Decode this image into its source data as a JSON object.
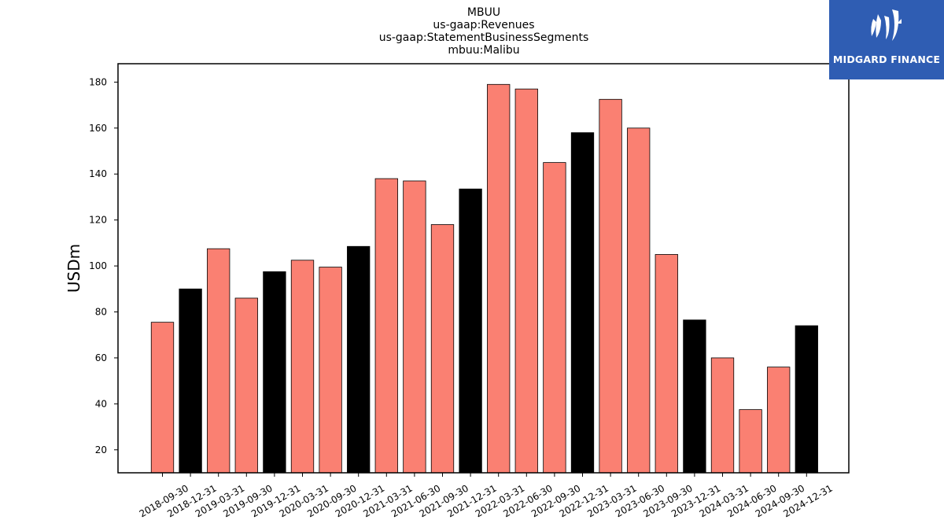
{
  "brand": {
    "name": "MIDGARD FINANCE",
    "color": "#2f5db3",
    "icon": "midgard-logo-icon"
  },
  "chart_data": {
    "type": "bar",
    "title_lines": [
      "MBUU",
      "us-gaap:Revenues",
      "us-gaap:StatementBusinessSegments",
      "mbuu:Malibu"
    ],
    "xlabel": "",
    "ylabel": "USDm",
    "ylim": [
      10,
      188
    ],
    "yticks": [
      20,
      40,
      60,
      80,
      100,
      120,
      140,
      160,
      180
    ],
    "grid": false,
    "colors": {
      "quarter": "#fa8072",
      "year_end": "#000000",
      "edge": "#000000"
    },
    "categories": [
      "2018-09-30",
      "2018-12-31",
      "2019-03-31",
      "2019-09-30",
      "2019-12-31",
      "2020-03-31",
      "2020-09-30",
      "2020-12-31",
      "2021-03-31",
      "2021-06-30",
      "2021-09-30",
      "2021-12-31",
      "2022-03-31",
      "2022-06-30",
      "2022-09-30",
      "2022-12-31",
      "2023-03-31",
      "2023-06-30",
      "2023-09-30",
      "2023-12-31",
      "2024-03-31",
      "2024-06-30",
      "2024-09-30",
      "2024-12-31"
    ],
    "values": [
      75.5,
      90.0,
      107.5,
      86.0,
      97.5,
      102.5,
      99.5,
      108.5,
      138.0,
      137.0,
      118.0,
      133.5,
      179.0,
      177.0,
      145.0,
      158.0,
      172.5,
      160.0,
      105.0,
      76.5,
      60.0,
      37.5,
      56.0,
      74.0
    ]
  }
}
